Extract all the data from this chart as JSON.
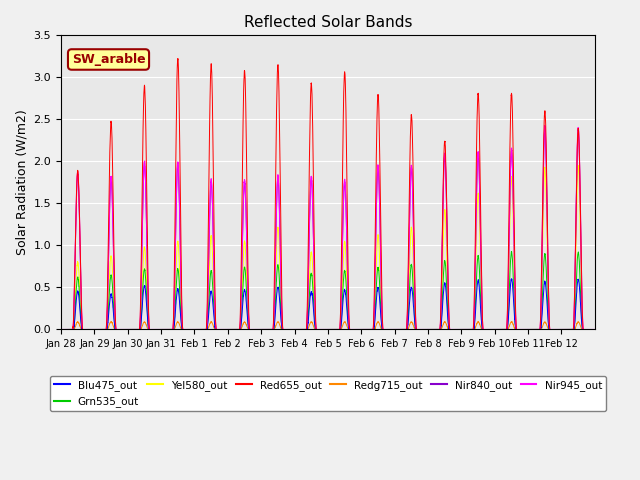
{
  "title": "Reflected Solar Bands",
  "ylabel": "Solar Radiation (W/m2)",
  "ylim": [
    0,
    3.5
  ],
  "yticks": [
    0.0,
    0.5,
    1.0,
    1.5,
    2.0,
    2.5,
    3.0,
    3.5
  ],
  "plot_bg_color": "#e8e8e8",
  "fig_bg_color": "#f0f0f0",
  "annotation_text": "SW_arable",
  "annotation_bg": "#ffff99",
  "annotation_fg": "#990000",
  "series": [
    {
      "label": "Blu475_out",
      "color": "#0000ff"
    },
    {
      "label": "Grn535_out",
      "color": "#00cc00"
    },
    {
      "label": "Yel580_out",
      "color": "#ffff00"
    },
    {
      "label": "Red655_out",
      "color": "#ff0000"
    },
    {
      "label": "Redg715_out",
      "color": "#ff8800"
    },
    {
      "label": "Nir840_out",
      "color": "#8800cc"
    },
    {
      "label": "Nir945_out",
      "color": "#ff00ff"
    }
  ],
  "x_tick_labels": [
    "Jan 28",
    "Jan 29",
    "Jan 30",
    "Jan 31",
    "Feb 1",
    "Feb 2",
    "Feb 3",
    "Feb 4",
    "Feb 5",
    "Feb 6",
    "Feb 7",
    "Feb 8",
    "Feb 9",
    "Feb 10",
    "Feb 11",
    "Feb 12"
  ],
  "n_days": 16,
  "ppd": 288,
  "day_peaks": {
    "red": [
      1.89,
      2.47,
      2.9,
      3.23,
      3.15,
      3.08,
      3.15,
      2.93,
      3.07,
      2.8,
      2.55,
      2.24,
      2.81,
      2.81,
      2.6,
      2.38
    ],
    "blu": [
      0.45,
      0.42,
      0.52,
      0.48,
      0.45,
      0.47,
      0.5,
      0.45,
      0.47,
      0.5,
      0.5,
      0.55,
      0.58,
      0.6,
      0.57,
      0.6
    ],
    "grn": [
      0.62,
      0.65,
      0.72,
      0.72,
      0.7,
      0.74,
      0.77,
      0.67,
      0.7,
      0.74,
      0.77,
      0.82,
      0.87,
      0.92,
      0.9,
      0.92
    ],
    "yel": [
      0.8,
      0.88,
      0.98,
      1.05,
      1.12,
      1.05,
      1.22,
      0.92,
      1.05,
      1.12,
      1.22,
      1.42,
      1.62,
      1.82,
      1.92,
      1.95
    ],
    "redg": [
      0.09,
      0.09,
      0.09,
      0.09,
      0.09,
      0.09,
      0.09,
      0.09,
      0.09,
      0.09,
      0.09,
      0.09,
      0.09,
      0.09,
      0.09,
      0.09
    ],
    "nir840": [
      1.85,
      1.8,
      1.98,
      1.97,
      1.76,
      1.76,
      1.81,
      1.8,
      1.76,
      1.93,
      1.93,
      2.08,
      2.1,
      2.13,
      2.4,
      2.38
    ],
    "nir945": [
      1.87,
      1.82,
      2.0,
      1.99,
      1.78,
      1.78,
      1.83,
      1.82,
      1.78,
      1.95,
      1.95,
      2.1,
      2.12,
      2.15,
      2.42,
      2.4
    ]
  }
}
